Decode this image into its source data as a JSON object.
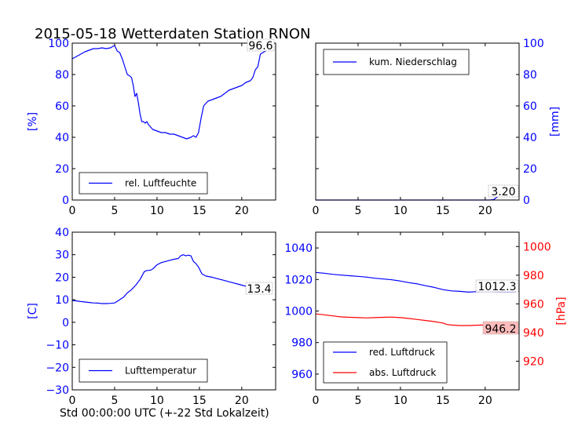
{
  "figure_title": "2015-05-18 Wetterdaten Station RNON",
  "colors": {
    "blue": "#0000ff",
    "red": "#ff0000",
    "black": "#000000",
    "annot_bg_red": "#ffbcbc"
  },
  "chart_data": [
    {
      "type": "line",
      "panel": "top-left",
      "ylabel": "[%]",
      "xlim": [
        0,
        24
      ],
      "ylim": [
        0,
        100
      ],
      "xticks": [
        0,
        5,
        10,
        15,
        20
      ],
      "yticks": [
        0,
        20,
        40,
        60,
        80,
        100
      ],
      "legend_position": "lower-left",
      "last_value_label": "96.6",
      "series": [
        {
          "name": "rel. Luftfeuchte",
          "color": "#0000ff",
          "x": [
            0,
            0.5,
            1,
            1.5,
            2,
            2.5,
            3,
            3.5,
            4,
            4.5,
            5,
            5.3,
            5.6,
            5.9,
            6.2,
            6.5,
            6.8,
            7.0,
            7.2,
            7.4,
            7.6,
            7.8,
            8.0,
            8.2,
            8.4,
            8.6,
            8.8,
            9.0,
            9.5,
            10,
            10.5,
            11,
            11.5,
            12,
            12.5,
            13,
            13.5,
            14,
            14.3,
            14.6,
            14.9,
            15.2,
            15.5,
            16,
            16.5,
            17,
            17.5,
            18,
            18.5,
            19,
            19.5,
            20,
            20.5,
            21,
            21.3,
            21.6,
            21.9,
            22.2,
            22.5,
            22.8,
            23.1,
            23.4,
            23.6
          ],
          "values": [
            90,
            91.5,
            93,
            94.5,
            95.5,
            96.5,
            96.5,
            97,
            96.5,
            97,
            98.5,
            95,
            94,
            90,
            85,
            80,
            79,
            78,
            73,
            66,
            68,
            62,
            55,
            50,
            50,
            49,
            50,
            48,
            45,
            44,
            43,
            43,
            42,
            42,
            41,
            40,
            39,
            40,
            41,
            40,
            43,
            52,
            60,
            63,
            64,
            65,
            66,
            68,
            70,
            71,
            72,
            73,
            75,
            76,
            78,
            83,
            85,
            93,
            94,
            95,
            96.5,
            96.6,
            96.6
          ]
        }
      ]
    },
    {
      "type": "line",
      "panel": "top-right",
      "ylabel": "[mm]",
      "xlim": [
        0,
        24
      ],
      "ylim": [
        0,
        100
      ],
      "xticks": [
        0,
        5,
        10,
        15,
        20
      ],
      "yticks": [
        0,
        20,
        40,
        60,
        80,
        100
      ],
      "legend_position": "upper-left",
      "last_value_label": "3.20",
      "series": [
        {
          "name": "kum. Niederschlag",
          "color": "#0000ff",
          "x": [
            0,
            20.5,
            21.0,
            21.3,
            21.6,
            22.0,
            23.6
          ],
          "values": [
            0,
            0,
            0.3,
            1.5,
            2.8,
            3.2,
            3.2
          ]
        }
      ]
    },
    {
      "type": "line",
      "panel": "bottom-left",
      "ylabel": "[C]",
      "xlabel": "Std 00:00:00 UTC (+-22 Std Lokalzeit)",
      "xlim": [
        0,
        24
      ],
      "ylim": [
        -30,
        40
      ],
      "xticks": [
        0,
        5,
        10,
        15,
        20
      ],
      "yticks": [
        -30,
        -20,
        -10,
        0,
        10,
        20,
        30,
        40
      ],
      "legend_position": "lower-left",
      "last_value_label": "13.4",
      "series": [
        {
          "name": "Lufttemperatur",
          "color": "#0000ff",
          "x": [
            0,
            0.5,
            1,
            1.5,
            2,
            2.5,
            3,
            3.5,
            4,
            4.5,
            5,
            5.5,
            6,
            6.5,
            7,
            7.5,
            8,
            8.5,
            8.8,
            9.0,
            9.3,
            9.6,
            10,
            10.5,
            11,
            11.5,
            12,
            12.5,
            12.8,
            13.1,
            13.4,
            13.7,
            14,
            14.3,
            14.6,
            14.9,
            15.3,
            15.8,
            16.5,
            17,
            17.5,
            18,
            18.5,
            19,
            19.5,
            20,
            20.5,
            21,
            21.5,
            22,
            22.5,
            23,
            23.6
          ],
          "values": [
            9.7,
            9.5,
            9.2,
            9.0,
            8.8,
            8.6,
            8.5,
            8.3,
            8.3,
            8.4,
            8.6,
            9.8,
            11,
            13,
            14.5,
            16.5,
            19,
            22.5,
            23,
            23,
            23.2,
            24,
            25.5,
            26.5,
            27,
            27.5,
            28,
            28.3,
            29.5,
            30,
            29.5,
            29.8,
            29.5,
            27,
            26,
            24.5,
            21.5,
            20.5,
            20,
            19.5,
            19,
            18.5,
            18,
            17.5,
            17,
            16.5,
            16,
            15.5,
            15,
            14.5,
            14,
            13.7,
            13.4
          ]
        }
      ]
    },
    {
      "type": "line",
      "panel": "bottom-right",
      "xlim": [
        0,
        24
      ],
      "ylim": [
        950,
        1050
      ],
      "yticks": [
        960,
        980,
        1000,
        1020,
        1040
      ],
      "ylim_right": [
        900,
        1010
      ],
      "yticks_right": [
        920,
        940,
        960,
        980,
        1000
      ],
      "ylabel_right": "[hPa]",
      "xticks": [
        0,
        5,
        10,
        15,
        20
      ],
      "legend_position": "lower-left",
      "series": [
        {
          "name": "red. Luftdruck",
          "color": "#0000ff",
          "axis": "left",
          "last_value_label": "1012.3",
          "x": [
            0,
            1,
            2,
            3,
            4,
            5,
            6,
            7,
            8,
            9,
            10,
            11,
            12,
            13,
            14,
            15,
            16,
            17,
            18,
            19,
            20,
            21,
            22,
            23,
            23.6
          ],
          "values": [
            1024.5,
            1024,
            1023.3,
            1022.8,
            1022.4,
            1022,
            1021.5,
            1020.8,
            1020.3,
            1019.8,
            1019,
            1018,
            1017.2,
            1016,
            1015,
            1013.6,
            1012.8,
            1012.5,
            1012,
            1012.3,
            1012.5,
            1012.4,
            1012.3,
            1012.3,
            1012.3
          ]
        },
        {
          "name": "abs. Luftdruck",
          "color": "#ff0000",
          "axis": "right",
          "last_value_label": "946.2",
          "x": [
            0,
            1,
            2,
            3,
            4,
            5,
            6,
            7,
            8,
            9,
            10,
            11,
            12,
            13,
            14,
            15,
            15.5,
            16,
            17,
            18,
            19,
            20,
            21,
            22,
            23,
            23.6
          ],
          "values": [
            953,
            952.4,
            951.6,
            950.9,
            950.6,
            950.4,
            950.2,
            950.4,
            950.6,
            950.8,
            950.4,
            949.8,
            949.1,
            948.4,
            947.6,
            946.6,
            945.6,
            945.2,
            944.9,
            944.9,
            945.1,
            945.3,
            945.6,
            945.9,
            946.1,
            946.2
          ]
        }
      ]
    }
  ]
}
